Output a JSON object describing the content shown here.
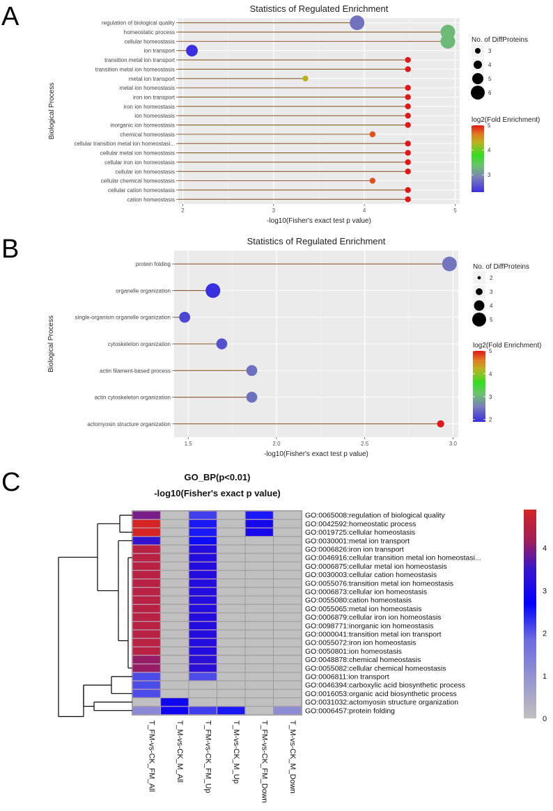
{
  "panels": {
    "a_letter": "A",
    "b_letter": "B",
    "c_letter": "C"
  },
  "chart_data": [
    {
      "type": "scatter",
      "subtype": "lollipop",
      "panel": "A",
      "title": "Statistics of Regulated Enrichment",
      "xlabel": "-log10(Fisher's exact test p value)",
      "ylabel": "Biological Process",
      "xlim": [
        1.95,
        5.05
      ],
      "xticks": [
        2,
        3,
        4,
        5
      ],
      "grid": true,
      "categories": [
        "regulation of biological quality",
        "homeostatic process",
        "cellular homeostasis",
        "ion transport",
        "transition metal ion transport",
        "transition metal ion homeostasis",
        "metal ion transport",
        "metal ion homeostasis",
        "iron ion transport",
        "iron ion homeostasis",
        "ion homeostasis",
        "inorganic ion homeostasis",
        "chemical homeostasis",
        "cellular transition metal ion homeostasi...",
        "cellular metal ion homeostasis",
        "cellular iron ion homeostasis",
        "cellular ion homeostasis",
        "cellular chemical homeostasis",
        "cellular cation homeostasis",
        "cation homeostasis"
      ],
      "x": [
        3.92,
        4.92,
        4.92,
        2.1,
        4.48,
        4.48,
        3.35,
        4.48,
        4.48,
        4.48,
        4.48,
        4.48,
        4.09,
        4.48,
        4.48,
        4.48,
        4.48,
        4.09,
        4.48,
        4.48
      ],
      "size": [
        6,
        6,
        6,
        5,
        3,
        3,
        3,
        3,
        3,
        3,
        3,
        3,
        3,
        3,
        3,
        3,
        3,
        3,
        3,
        3
      ],
      "color_value": [
        2.8,
        3.3,
        3.3,
        2.3,
        5.0,
        5.0,
        4.3,
        5.0,
        5.0,
        5.0,
        5.0,
        5.0,
        4.8,
        5.0,
        5.0,
        5.0,
        5.0,
        4.8,
        5.0,
        5.0
      ],
      "size_legend": {
        "title": "No. of DiffProteins",
        "values": [
          "3",
          "4",
          "5",
          "6"
        ]
      },
      "color_legend": {
        "title": "log2(Fold Enrichment)",
        "ticks": [
          "5",
          "4",
          "3"
        ],
        "range": [
          2.3,
          5.0
        ]
      },
      "legend_position": "right"
    },
    {
      "type": "scatter",
      "subtype": "lollipop",
      "panel": "B",
      "title": "Statistics of Regulated Enrichment",
      "xlabel": "-log10(Fisher's exact test p value)",
      "ylabel": "Biological Process",
      "xlim": [
        1.42,
        3.03
      ],
      "xticks": [
        "1.5",
        "2.0",
        "2.5",
        "3.0"
      ],
      "xtick_values": [
        1.5,
        2.0,
        2.5,
        3.0
      ],
      "grid": true,
      "categories": [
        "protein folding",
        "organelle organization",
        "single-organism organelle organization",
        "cytoskeleton organization",
        "actin filament-based process",
        "actin cytoskeleton organization",
        "actomyosin structure organization"
      ],
      "x": [
        2.98,
        1.64,
        1.48,
        1.69,
        1.86,
        1.86,
        2.93
      ],
      "size": [
        5,
        5,
        4,
        4,
        4,
        4,
        3
      ],
      "color_value": [
        2.5,
        1.9,
        2.1,
        2.2,
        2.45,
        2.45,
        5.0
      ],
      "size_legend": {
        "title": "No. of DiffProteins",
        "values": [
          "2",
          "3",
          "4",
          "5"
        ]
      },
      "color_legend": {
        "title": "log2(Fold Enrichment)",
        "ticks": [
          "5",
          "4",
          "3",
          "2"
        ],
        "range": [
          1.9,
          5.0
        ]
      },
      "legend_position": "right"
    },
    {
      "type": "heatmap",
      "panel": "C",
      "title": "GO_BP(p<0.01)",
      "subtitle": "-log10(Fisher's exact p value)",
      "columns": [
        "T_FM-vs-CK_FM_All",
        "T_M-vs-CK_M_All",
        "T_FM-vs-CK_FM_Up",
        "T_M-vs-CK_M_Up",
        "T_FM-vs-CK_FM_Down",
        "T_M-vs-CK_M_Down"
      ],
      "rows": [
        "GO:0065008:regulation of biological quality",
        "GO:0042592:homeostatic process",
        "GO:0019725:cellular homeostasis",
        "GO:0030001:metal ion transport",
        "GO:0006826:iron ion transport",
        "GO:0046916:cellular transition metal ion homeostasi...",
        "GO:0006875:cellular metal ion homeostasis",
        "GO:0030003:cellular cation homeostasis",
        "GO:0055076:transition metal ion homeostasis",
        "GO:0006873:cellular ion homeostasis",
        "GO:0055080:cation homeostasis",
        "GO:0055065:metal ion homeostasis",
        "GO:0006879:cellular iron ion homeostasis",
        "GO:0098771:inorganic ion homeostasis",
        "GO:0000041:transition metal ion transport",
        "GO:0055072:iron ion homeostasis",
        "GO:0050801:ion homeostasis",
        "GO:0048878:chemical homeostasis",
        "GO:0055082:cellular chemical homeostasis",
        "GO:0006811:ion transport",
        "GO:0046394:carboxylic acid biosynthetic process",
        "GO:0016053:organic acid biosynthetic process",
        "GO:0031032:actomyosin structure organization",
        "GO:0006457:protein folding"
      ],
      "values": [
        [
          3.9,
          0,
          2.2,
          0,
          2.5,
          0
        ],
        [
          4.9,
          0,
          2.5,
          0,
          3.0,
          0
        ],
        [
          4.9,
          0,
          2.5,
          0,
          3.0,
          0
        ],
        [
          3.4,
          0,
          2.6,
          0,
          0,
          0
        ],
        [
          4.5,
          0,
          3.2,
          0,
          0,
          0
        ],
        [
          4.5,
          0,
          3.2,
          0,
          0,
          0
        ],
        [
          4.5,
          0,
          3.2,
          0,
          0,
          0
        ],
        [
          4.5,
          0,
          3.2,
          0,
          0,
          0
        ],
        [
          4.5,
          0,
          3.2,
          0,
          0,
          0
        ],
        [
          4.5,
          0,
          3.2,
          0,
          0,
          0
        ],
        [
          4.5,
          0,
          3.2,
          0,
          0,
          0
        ],
        [
          4.5,
          0,
          3.2,
          0,
          0,
          0
        ],
        [
          4.5,
          0,
          3.2,
          0,
          0,
          0
        ],
        [
          4.5,
          0,
          3.2,
          0,
          0,
          0
        ],
        [
          4.5,
          0,
          3.2,
          0,
          0,
          0
        ],
        [
          4.5,
          0,
          3.2,
          0,
          0,
          0
        ],
        [
          4.5,
          0,
          3.2,
          0,
          0,
          0
        ],
        [
          4.1,
          0,
          3.3,
          0,
          0,
          0
        ],
        [
          4.1,
          0,
          3.3,
          0,
          0,
          0
        ],
        [
          2.1,
          0,
          2.1,
          0,
          0,
          0
        ],
        [
          2.1,
          0,
          0,
          0,
          0,
          0
        ],
        [
          2.1,
          0,
          0,
          0,
          0,
          0
        ],
        [
          0,
          2.9,
          0,
          0,
          0,
          0
        ],
        [
          1.2,
          2.9,
          2.2,
          2.5,
          0,
          1.1
        ]
      ],
      "colorbar": {
        "ticks": [
          "0",
          "1",
          "2",
          "3",
          "4"
        ],
        "range": [
          0,
          4.9
        ]
      },
      "colors": {
        "low": "#c0c0c0",
        "mid": "#0000ff",
        "high": "#d42424"
      },
      "dendrogram": "rows"
    }
  ]
}
